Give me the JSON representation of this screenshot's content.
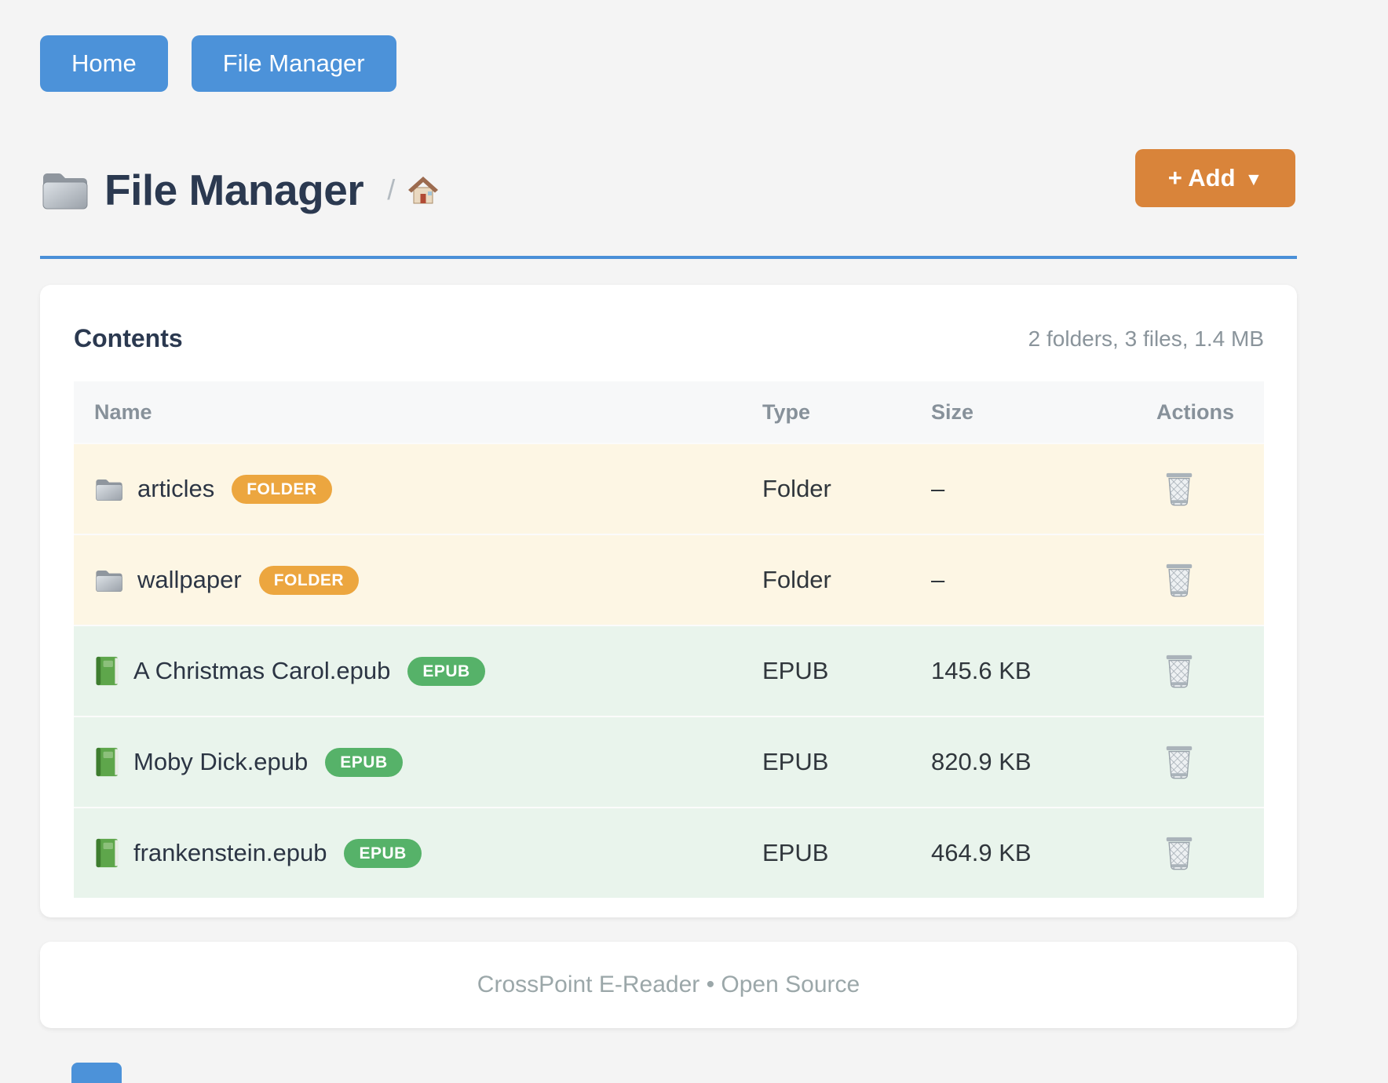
{
  "nav": {
    "items": [
      {
        "label": "Home"
      },
      {
        "label": "File Manager"
      }
    ]
  },
  "page_header": {
    "title": "File Manager",
    "title_icon": "folder-icon",
    "breadcrumb_separator": "/",
    "breadcrumb_home_icon": "house-icon",
    "add_button": {
      "label": "+ Add",
      "caret": "▼"
    }
  },
  "contents_card": {
    "heading": "Contents",
    "summary": "2 folders, 3 files, 1.4 MB",
    "table": {
      "columns": [
        "Name",
        "Type",
        "Size",
        "Actions"
      ],
      "action_icon": "trash-icon",
      "rows": [
        {
          "name": "articles",
          "kind": "folder",
          "icon": "folder-icon",
          "badge": "FOLDER",
          "type": "Folder",
          "size": "–"
        },
        {
          "name": "wallpaper",
          "kind": "folder",
          "icon": "folder-icon",
          "badge": "FOLDER",
          "type": "Folder",
          "size": "–"
        },
        {
          "name": "A Christmas Carol.epub",
          "kind": "epub",
          "icon": "book-icon",
          "badge": "EPUB",
          "type": "EPUB",
          "size": "145.6 KB"
        },
        {
          "name": "Moby Dick.epub",
          "kind": "epub",
          "icon": "book-icon",
          "badge": "EPUB",
          "type": "EPUB",
          "size": "820.9 KB"
        },
        {
          "name": "frankenstein.epub",
          "kind": "epub",
          "icon": "book-icon",
          "badge": "EPUB",
          "type": "EPUB",
          "size": "464.9 KB"
        }
      ]
    }
  },
  "footer": {
    "text": "CrossPoint E-Reader • Open Source"
  },
  "colors": {
    "primary_blue": "#4c92d9",
    "divider_blue": "#4a90d8",
    "add_orange": "#d9843a",
    "badge_orange": "#eca63f",
    "badge_green": "#56b269",
    "folder_row_bg": "#fdf6e4",
    "epub_row_bg": "#e9f4ec"
  }
}
